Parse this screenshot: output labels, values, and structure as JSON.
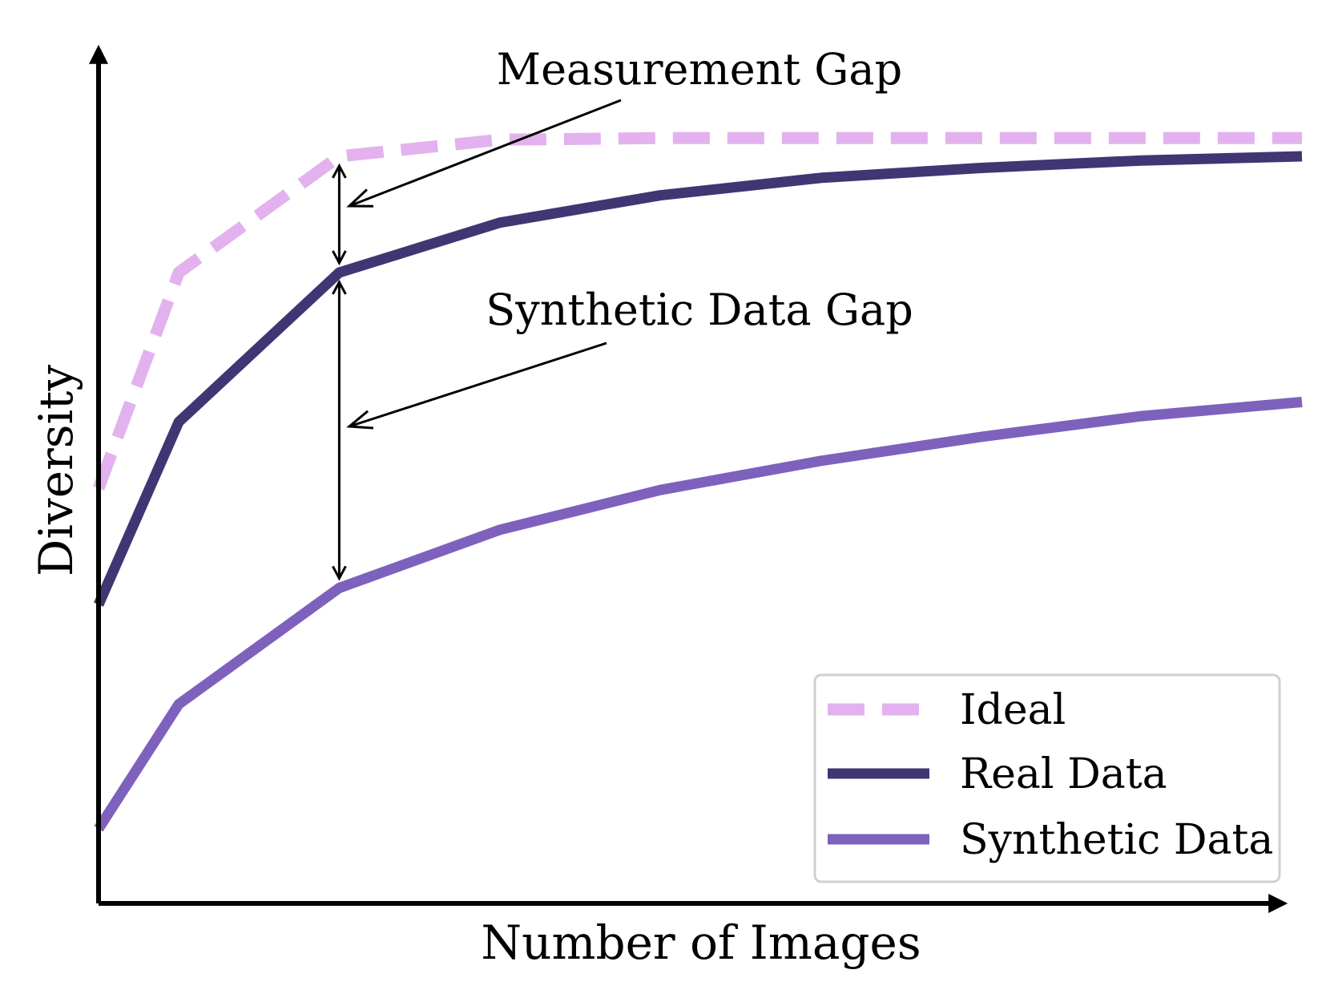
{
  "chart_data": {
    "type": "line",
    "xlabel": "Number of Images",
    "ylabel": "Diversity",
    "xlim": [
      0,
      15
    ],
    "ylim": [
      0,
      10.4
    ],
    "grid": false,
    "legend_position": "bottom-right",
    "x": [
      0,
      1,
      3,
      5,
      7,
      9,
      11,
      13,
      15
    ],
    "series": [
      {
        "name": "Ideal",
        "color": "#e3b2ee",
        "style": "dashed",
        "values": [
          5.0,
          7.6,
          9.0,
          9.2,
          9.22,
          9.22,
          9.22,
          9.22,
          9.22
        ]
      },
      {
        "name": "Real Data",
        "color": "#423573",
        "style": "solid",
        "values": [
          3.6,
          5.8,
          7.6,
          8.2,
          8.53,
          8.74,
          8.86,
          8.95,
          9.0
        ]
      },
      {
        "name": "Synthetic Data",
        "color": "#7e61bd",
        "style": "solid",
        "values": [
          0.9,
          2.4,
          3.8,
          4.5,
          4.98,
          5.33,
          5.62,
          5.87,
          6.04
        ]
      }
    ],
    "annotations": [
      {
        "id": "measurement",
        "text": "Measurement Gap",
        "x": 3,
        "from": "Real Data",
        "to": "Ideal"
      },
      {
        "id": "synthetic",
        "text": "Synthetic Data Gap",
        "x": 3,
        "from": "Synthetic Data",
        "to": "Real Data"
      }
    ]
  }
}
